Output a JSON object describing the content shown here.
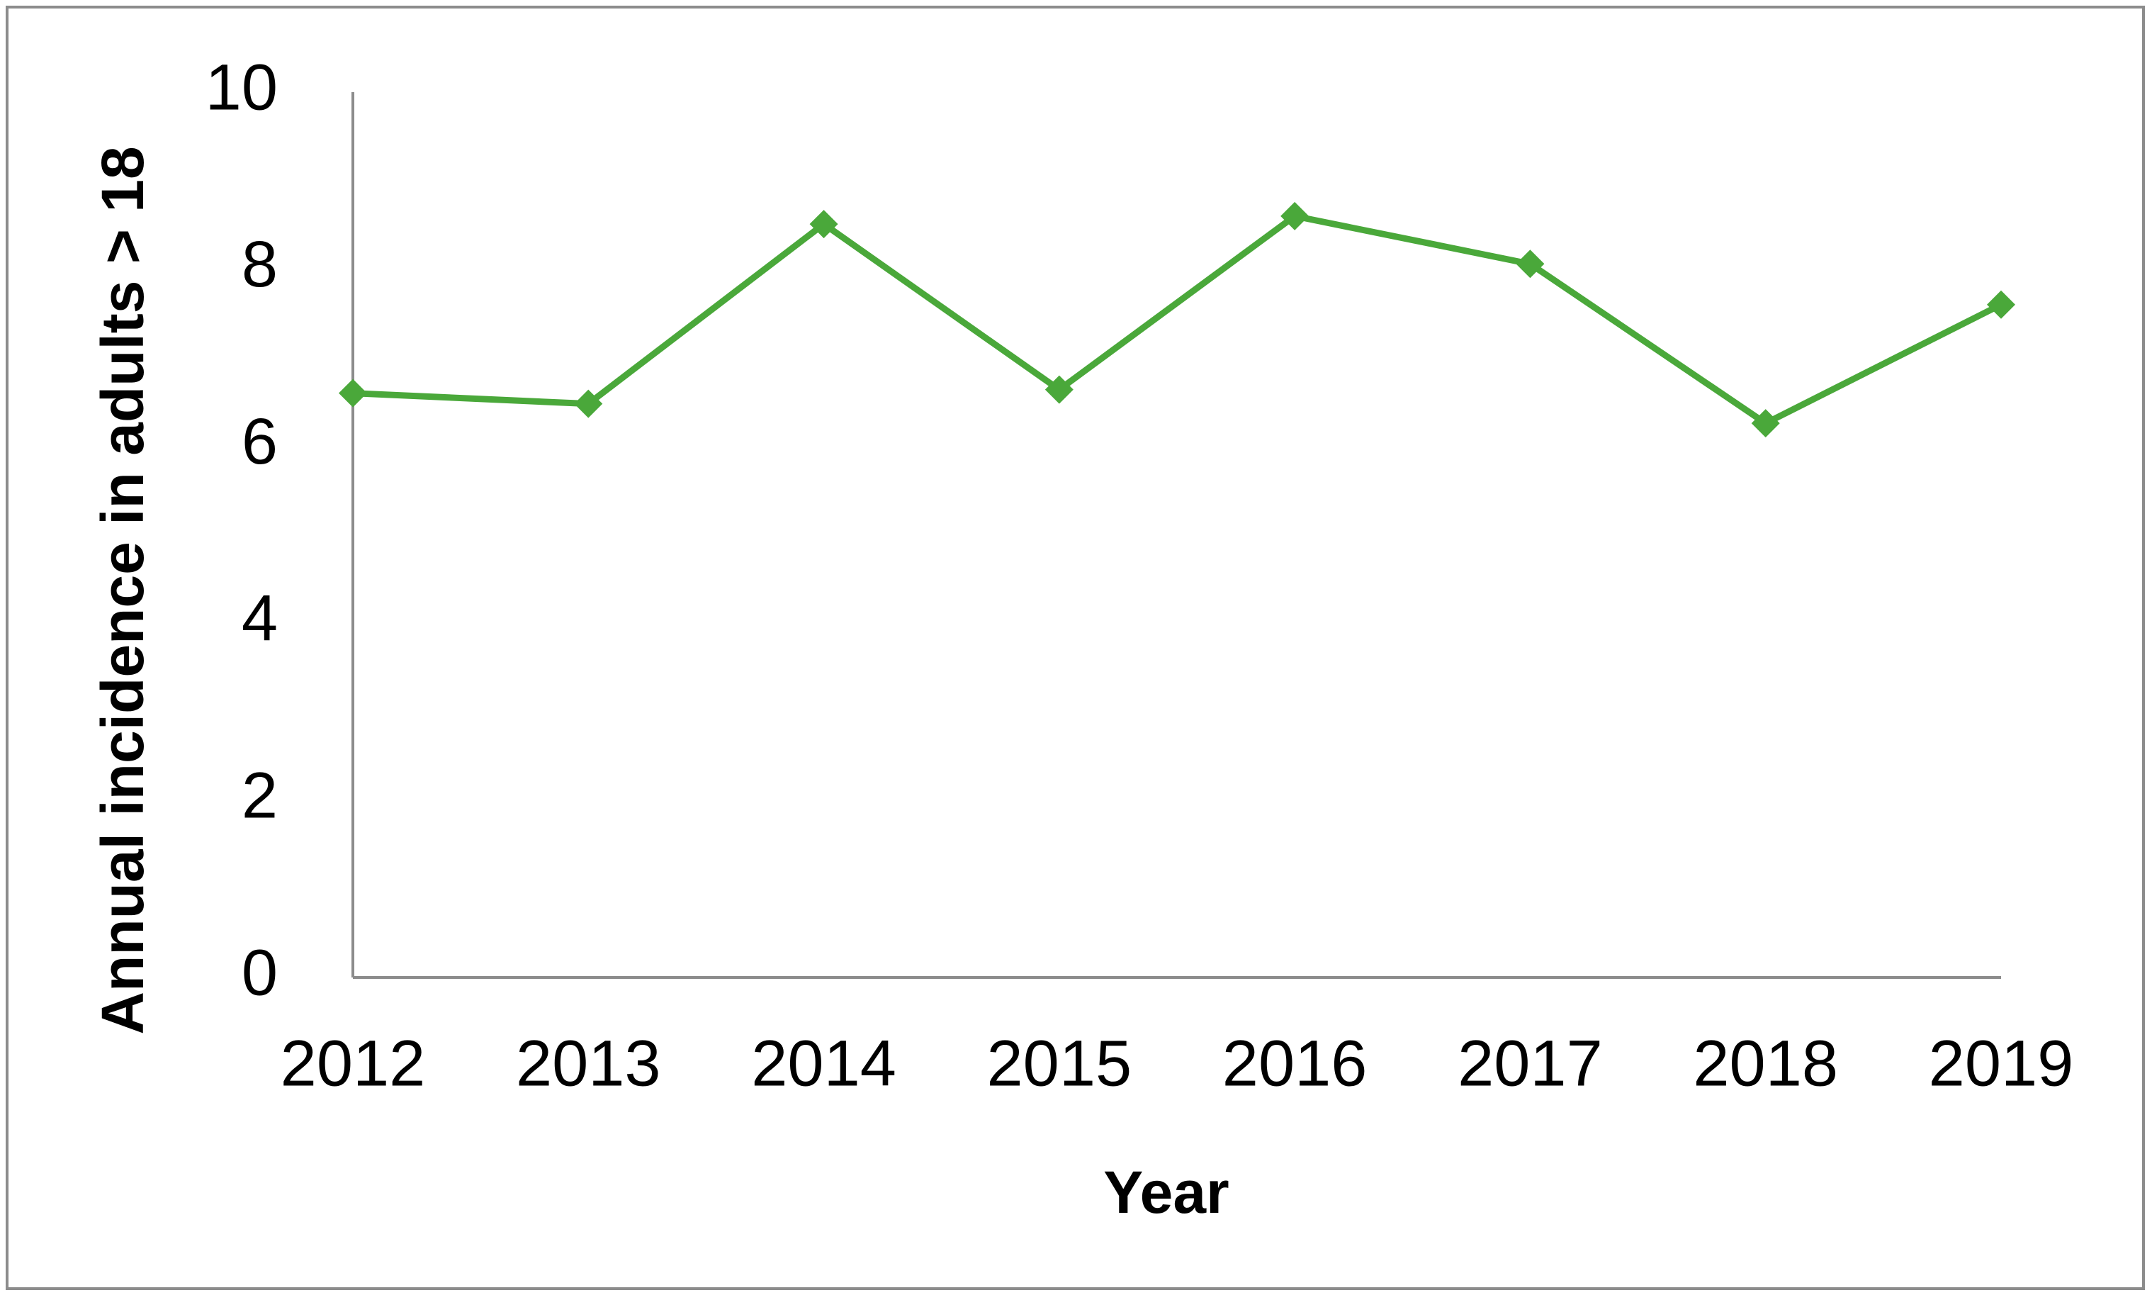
{
  "chart_data": {
    "type": "line",
    "x_label": "Year",
    "y_label": "Annual incidence in adults > 18",
    "categories": [
      "2012",
      "2013",
      "2014",
      "2015",
      "2016",
      "2017",
      "2018",
      "2019"
    ],
    "series": [
      {
        "color": "#4aa83a",
        "values": [
          6.6,
          6.48,
          8.51,
          6.64,
          8.6,
          8.06,
          6.26,
          7.6
        ]
      }
    ],
    "ylim": [
      0,
      10
    ],
    "yticks": [
      0,
      2,
      4,
      6,
      8,
      10
    ],
    "grid": false
  }
}
